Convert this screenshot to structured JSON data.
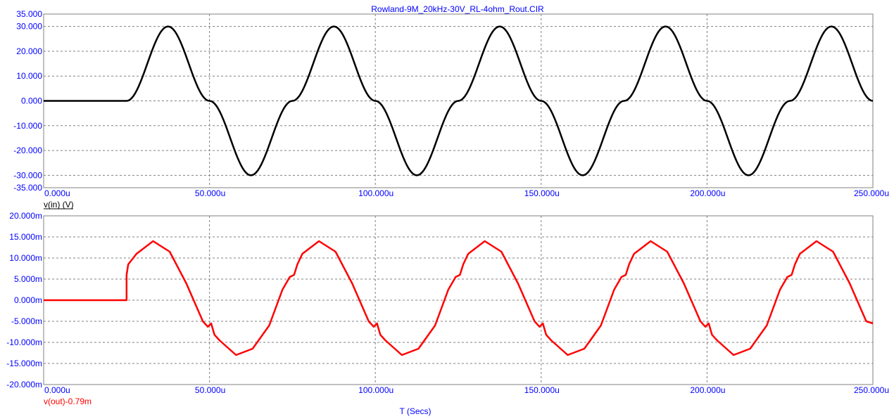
{
  "title": "Rowland-9M_20kHz-30V_RL-4ohm_Rout.CIR",
  "xlabel": "T (Secs)",
  "colors": {
    "axis_text": "#0000ff",
    "grid": "#808080",
    "vin": "#000000",
    "vout": "#ff0000"
  },
  "chart_data": [
    {
      "type": "line",
      "ylabel": "v(in) (V)",
      "xlim": [
        0,
        0.00025
      ],
      "ylim": [
        -35,
        35
      ],
      "x_tick_labels": [
        "0.000u",
        "50.000u",
        "100.000u",
        "150.000u",
        "200.000u",
        "250.000u"
      ],
      "x_ticks": [
        0,
        5e-05,
        0.0001,
        0.00015,
        0.0002,
        0.00025
      ],
      "y_tick_labels": [
        "35.000",
        "30.000",
        "20.000",
        "10.000",
        "0.000",
        "-10.000",
        "-20.000",
        "-30.000",
        "-35.000"
      ],
      "y_ticks": [
        35,
        30,
        20,
        10,
        0,
        -10,
        -20,
        -30,
        -35
      ],
      "grid": true,
      "series": [
        {
          "name": "v(in) (V)",
          "x": [
            0,
            2.5e-05,
            3.75e-05,
            5e-05,
            6.25e-05,
            7.5e-05,
            8.75e-05,
            0.0001,
            0.0001125,
            0.000125,
            0.0001375,
            0.00015,
            0.0001625,
            0.000175,
            0.0001875,
            0.0002,
            0.0002125,
            0.000225,
            0.0002375,
            0.00025
          ],
          "values": [
            0,
            0,
            30,
            0,
            -30,
            0,
            30,
            0,
            -30,
            0,
            30,
            0,
            -30,
            0,
            30,
            0,
            -30,
            0,
            30,
            0
          ]
        }
      ]
    },
    {
      "type": "line",
      "ylabel": "v(out)-0.79m",
      "xlim": [
        0,
        0.00025
      ],
      "ylim": [
        -0.02,
        0.02
      ],
      "x_tick_labels": [
        "0.000u",
        "50.000u",
        "100.000u",
        "150.000u",
        "200.000u",
        "250.000u"
      ],
      "x_ticks": [
        0,
        5e-05,
        0.0001,
        0.00015,
        0.0002,
        0.00025
      ],
      "y_tick_labels": [
        "20.000m",
        "15.000m",
        "10.000m",
        "5.000m",
        "0.000m",
        "-5.000m",
        "-10.000m",
        "-15.000m",
        "-20.000m"
      ],
      "y_ticks": [
        0.02,
        0.015,
        0.01,
        0.005,
        0,
        -0.005,
        -0.01,
        -0.015,
        -0.02
      ],
      "grid": true,
      "series": [
        {
          "name": "v(out)-0.79m",
          "x": [
            0,
            2.5e-05,
            2.5e-05,
            2.55e-05,
            2.65e-05,
            2.8e-05,
            3.3e-05,
            3.8e-05,
            4.3e-05,
            4.8e-05,
            4.95e-05,
            5.05e-05,
            5.15e-05,
            5.3e-05,
            5.8e-05,
            6.3e-05,
            6.8e-05,
            7.2e-05,
            7.42e-05,
            7.55e-05,
            7.65e-05,
            7.8e-05,
            8.3e-05,
            8.8e-05,
            9.3e-05,
            9.8e-05,
            9.95e-05,
            0.0001005,
            0.0001015,
            0.000103,
            0.000108,
            0.000113,
            0.000118,
            0.000122,
            0.0001242,
            0.0001255,
            0.0001265,
            0.000128,
            0.000133,
            0.000138,
            0.000143,
            0.000148,
            0.0001495,
            0.0001505,
            0.0001515,
            0.000153,
            0.000158,
            0.000163,
            0.000168,
            0.000172,
            0.0001742,
            0.0001755,
            0.0001765,
            0.000178,
            0.000183,
            0.000188,
            0.000193,
            0.000198,
            0.0001995,
            0.0002005,
            0.0002015,
            0.000203,
            0.000208,
            0.000213,
            0.000218,
            0.000222,
            0.0002242,
            0.0002255,
            0.0002265,
            0.000228,
            0.000233,
            0.000238,
            0.000243,
            0.000248,
            0.00025
          ],
          "values": [
            0,
            0,
            0.006,
            0.0085,
            0.0095,
            0.011,
            0.014,
            0.0115,
            0.004,
            -0.005,
            -0.0063,
            -0.0055,
            -0.0082,
            -0.0095,
            -0.013,
            -0.0115,
            -0.006,
            0.0025,
            0.0055,
            0.006,
            0.0085,
            0.011,
            0.014,
            0.0115,
            0.004,
            -0.005,
            -0.0063,
            -0.0055,
            -0.0082,
            -0.0095,
            -0.013,
            -0.0115,
            -0.006,
            0.0025,
            0.0055,
            0.006,
            0.0085,
            0.011,
            0.014,
            0.0115,
            0.004,
            -0.005,
            -0.0063,
            -0.0055,
            -0.0082,
            -0.0095,
            -0.013,
            -0.0115,
            -0.006,
            0.0025,
            0.0055,
            0.006,
            0.0085,
            0.011,
            0.014,
            0.0115,
            0.004,
            -0.005,
            -0.0063,
            -0.0055,
            -0.0082,
            -0.0095,
            -0.013,
            -0.0115,
            -0.006,
            0.0025,
            0.0055,
            0.006,
            0.0085,
            0.011,
            0.014,
            0.0115,
            0.004,
            -0.005,
            -0.0055
          ]
        }
      ]
    }
  ]
}
